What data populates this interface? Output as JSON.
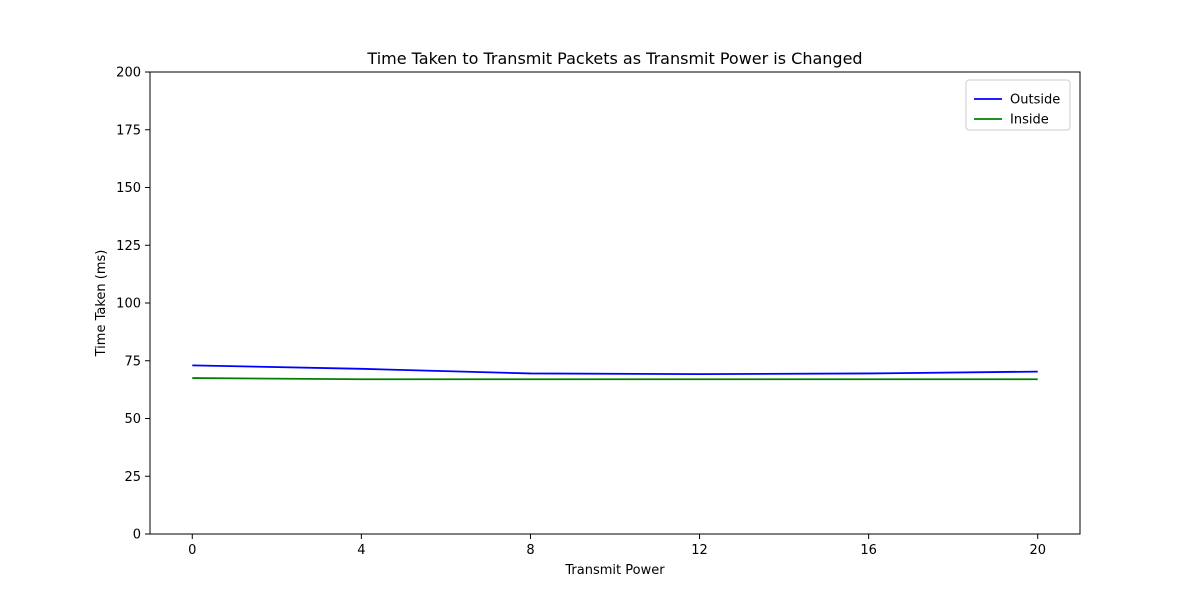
{
  "chart_data": {
    "type": "line",
    "title": "Time Taken to Transmit Packets as Transmit Power is Changed",
    "xlabel": "Transmit Power",
    "ylabel": "Time Taken (ms)",
    "x": [
      0,
      4,
      8,
      12,
      16,
      20
    ],
    "xlim": [
      -1,
      21
    ],
    "ylim": [
      0,
      200
    ],
    "xticks": [
      0,
      4,
      8,
      12,
      16,
      20
    ],
    "yticks": [
      0,
      25,
      50,
      75,
      100,
      125,
      150,
      175,
      200
    ],
    "grid": false,
    "legend_position": "top-right",
    "series": [
      {
        "name": "Outside",
        "color": "#0000ff",
        "values": [
          73.0,
          71.5,
          69.5,
          69.2,
          69.5,
          70.3
        ]
      },
      {
        "name": "Inside",
        "color": "#008000",
        "values": [
          67.5,
          67.0,
          67.0,
          67.0,
          67.0,
          67.0
        ]
      }
    ]
  }
}
